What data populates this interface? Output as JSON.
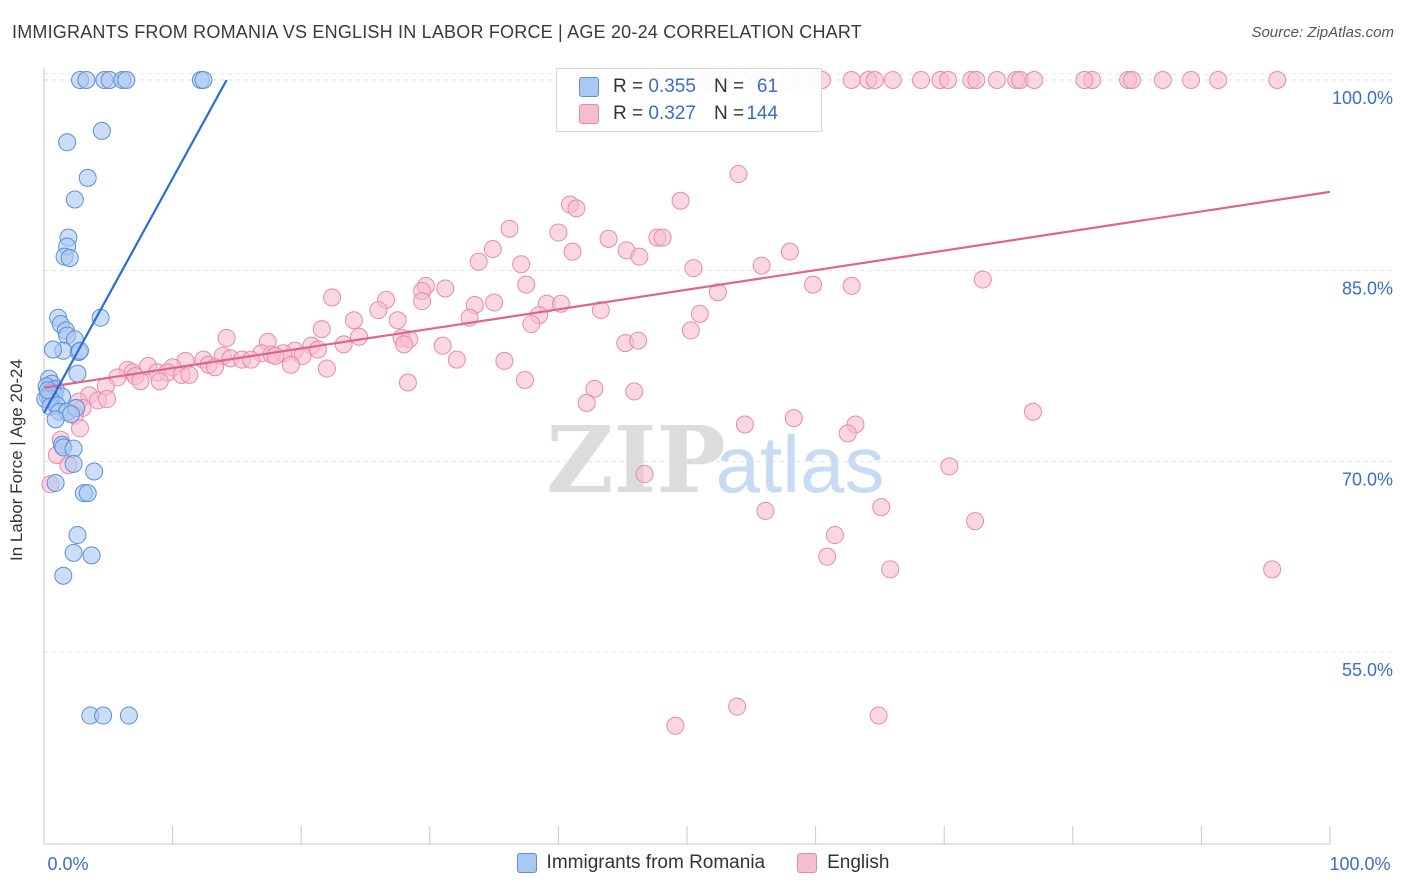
{
  "title": "IMMIGRANTS FROM ROMANIA VS ENGLISH IN LABOR FORCE | AGE 20-24 CORRELATION CHART",
  "source": "Source: ZipAtlas.com",
  "watermark": {
    "zip": "ZIP",
    "atlas": "atlas"
  },
  "colors": {
    "blue_fill": "#aac8f2",
    "blue_stroke": "#5b8fd9",
    "blue_line": "#2a6dd4",
    "pink_fill": "#f6bcd0",
    "pink_stroke": "#e88aab",
    "pink_line": "#e0648f",
    "axis_label": "#3a6fc4"
  },
  "legend": {
    "rows": [
      {
        "r_label": "R =",
        "r_value": "0.355",
        "n_label": "N =",
        "n_value": "61",
        "color": "#aac8f2"
      },
      {
        "r_label": "R =",
        "r_value": "0.327",
        "n_label": "N =",
        "n_value": "144",
        "color": "#f6bcd0"
      }
    ]
  },
  "chart_data": {
    "type": "scatter",
    "title": "IMMIGRANTS FROM ROMANIA VS ENGLISH IN LABOR FORCE | AGE 20-24 CORRELATION CHART",
    "xlabel": "",
    "ylabel": "In Labor Force | Age 20-24",
    "xlim": [
      0,
      100
    ],
    "ylim": [
      40,
      101.5
    ],
    "x_tick_labels": [
      {
        "value": 0,
        "label": "0.0%"
      },
      {
        "value": 100,
        "label": "100.0%"
      }
    ],
    "y_tick_labels": [
      {
        "value": 100,
        "label": "100.0%"
      },
      {
        "value": 85,
        "label": "85.0%"
      },
      {
        "value": 70,
        "label": "70.0%"
      },
      {
        "value": 55,
        "label": "55.0%"
      }
    ],
    "series": [
      {
        "name": "Immigrants from Romania",
        "color": "#aac8f2",
        "trend": {
          "x": [
            0.0,
            14.2
          ],
          "y": [
            73.8,
            100.0
          ]
        },
        "points": [
          [
            2.8,
            100
          ],
          [
            3.3,
            100
          ],
          [
            4.7,
            100
          ],
          [
            5.1,
            100
          ],
          [
            6.1,
            100
          ],
          [
            6.4,
            100
          ],
          [
            12.2,
            100
          ],
          [
            12.4,
            100
          ],
          [
            1.8,
            95.1
          ],
          [
            4.5,
            96.0
          ],
          [
            3.4,
            92.3
          ],
          [
            2.4,
            90.6
          ],
          [
            1.9,
            87.6
          ],
          [
            1.8,
            86.9
          ],
          [
            1.6,
            86.1
          ],
          [
            2.0,
            86.0
          ],
          [
            4.4,
            81.3
          ],
          [
            1.1,
            81.3
          ],
          [
            1.3,
            80.8
          ],
          [
            1.7,
            80.3
          ],
          [
            1.8,
            79.9
          ],
          [
            2.4,
            79.6
          ],
          [
            1.5,
            78.7
          ],
          [
            2.7,
            78.6
          ],
          [
            2.8,
            78.7
          ],
          [
            0.7,
            78.8
          ],
          [
            2.6,
            76.9
          ],
          [
            0.4,
            76.5
          ],
          [
            0.6,
            76.1
          ],
          [
            0.2,
            75.9
          ],
          [
            0.7,
            75.6
          ],
          [
            0.9,
            75.7
          ],
          [
            0.4,
            75.4
          ],
          [
            0.8,
            75.2
          ],
          [
            0.3,
            75.1
          ],
          [
            1.4,
            75.1
          ],
          [
            0.5,
            74.9
          ],
          [
            0.1,
            74.9
          ],
          [
            0.5,
            74.3
          ],
          [
            1.0,
            74.4
          ],
          [
            1.2,
            73.9
          ],
          [
            1.8,
            73.9
          ],
          [
            2.5,
            74.2
          ],
          [
            2.1,
            73.7
          ],
          [
            0.9,
            73.3
          ],
          [
            1.4,
            71.3
          ],
          [
            1.5,
            71.1
          ],
          [
            2.3,
            71.0
          ],
          [
            2.3,
            69.8
          ],
          [
            3.9,
            69.2
          ],
          [
            0.9,
            68.3
          ],
          [
            3.1,
            67.5
          ],
          [
            3.4,
            67.5
          ],
          [
            2.6,
            64.2
          ],
          [
            2.3,
            62.8
          ],
          [
            3.7,
            62.6
          ],
          [
            1.5,
            61.0
          ],
          [
            3.6,
            50.0
          ],
          [
            4.6,
            50.0
          ],
          [
            6.6,
            50.0
          ],
          [
            0.3,
            75.6
          ]
        ]
      },
      {
        "name": "English",
        "color": "#f6bcd0",
        "trend": {
          "x": [
            0.0,
            100.0
          ],
          "y": [
            75.8,
            91.2
          ]
        },
        "points": [
          [
            51.6,
            100
          ],
          [
            52.5,
            100
          ],
          [
            53.1,
            100
          ],
          [
            55.6,
            100
          ],
          [
            56.0,
            100
          ],
          [
            57.8,
            100
          ],
          [
            59.2,
            100
          ],
          [
            60.5,
            100
          ],
          [
            64.1,
            100
          ],
          [
            64.6,
            100
          ],
          [
            66.0,
            100
          ],
          [
            68.2,
            100
          ],
          [
            69.7,
            100
          ],
          [
            72.1,
            100
          ],
          [
            72.5,
            100
          ],
          [
            74.1,
            100
          ],
          [
            75.6,
            100
          ],
          [
            75.9,
            100
          ],
          [
            77.0,
            100
          ],
          [
            81.5,
            100
          ],
          [
            84.3,
            100
          ],
          [
            84.6,
            100
          ],
          [
            87.0,
            100
          ],
          [
            89.2,
            100
          ],
          [
            91.3,
            100
          ],
          [
            95.9,
            100
          ],
          [
            54.3,
            100
          ],
          [
            62.8,
            100
          ],
          [
            70.3,
            100
          ],
          [
            80.9,
            100
          ],
          [
            54.0,
            92.6
          ],
          [
            49.5,
            90.5
          ],
          [
            40.9,
            90.2
          ],
          [
            41.4,
            89.9
          ],
          [
            36.2,
            88.3
          ],
          [
            40.0,
            88.0
          ],
          [
            43.9,
            87.5
          ],
          [
            47.7,
            87.6
          ],
          [
            48.1,
            87.6
          ],
          [
            34.9,
            86.7
          ],
          [
            45.3,
            86.6
          ],
          [
            41.1,
            86.5
          ],
          [
            46.3,
            86.1
          ],
          [
            58.0,
            86.5
          ],
          [
            33.8,
            85.7
          ],
          [
            37.1,
            85.5
          ],
          [
            50.5,
            85.2
          ],
          [
            55.8,
            85.4
          ],
          [
            73.0,
            84.3
          ],
          [
            37.5,
            83.9
          ],
          [
            29.7,
            83.8
          ],
          [
            31.2,
            83.6
          ],
          [
            59.8,
            83.9
          ],
          [
            62.8,
            83.8
          ],
          [
            29.4,
            83.4
          ],
          [
            52.4,
            83.3
          ],
          [
            22.4,
            82.9
          ],
          [
            26.6,
            82.7
          ],
          [
            35.0,
            82.5
          ],
          [
            29.4,
            82.6
          ],
          [
            33.5,
            82.3
          ],
          [
            39.1,
            82.4
          ],
          [
            40.2,
            82.4
          ],
          [
            43.3,
            81.9
          ],
          [
            26.0,
            81.9
          ],
          [
            51.0,
            81.6
          ],
          [
            24.1,
            81.1
          ],
          [
            33.1,
            81.3
          ],
          [
            38.5,
            81.5
          ],
          [
            27.5,
            81.1
          ],
          [
            37.9,
            80.8
          ],
          [
            50.3,
            80.3
          ],
          [
            21.6,
            80.4
          ],
          [
            24.5,
            79.8
          ],
          [
            27.8,
            79.7
          ],
          [
            28.4,
            79.6
          ],
          [
            14.2,
            79.7
          ],
          [
            45.2,
            79.3
          ],
          [
            46.2,
            79.5
          ],
          [
            23.3,
            79.2
          ],
          [
            28.0,
            79.2
          ],
          [
            17.4,
            79.4
          ],
          [
            31.0,
            79.1
          ],
          [
            20.8,
            79.1
          ],
          [
            21.3,
            78.8
          ],
          [
            19.5,
            78.7
          ],
          [
            18.6,
            78.5
          ],
          [
            16.9,
            78.5
          ],
          [
            17.7,
            78.4
          ],
          [
            20.1,
            78.3
          ],
          [
            18.0,
            78.3
          ],
          [
            13.9,
            78.3
          ],
          [
            14.5,
            78.1
          ],
          [
            15.4,
            78.0
          ],
          [
            16.1,
            78.0
          ],
          [
            12.4,
            78.0
          ],
          [
            32.1,
            78.0
          ],
          [
            35.8,
            77.9
          ],
          [
            11.0,
            77.9
          ],
          [
            12.8,
            77.6
          ],
          [
            19.2,
            77.6
          ],
          [
            13.3,
            77.4
          ],
          [
            8.1,
            77.5
          ],
          [
            10.0,
            77.4
          ],
          [
            22.0,
            77.3
          ],
          [
            6.5,
            77.2
          ],
          [
            6.9,
            77.0
          ],
          [
            8.8,
            77.0
          ],
          [
            9.6,
            77.0
          ],
          [
            10.7,
            76.8
          ],
          [
            11.3,
            76.8
          ],
          [
            5.7,
            76.6
          ],
          [
            7.1,
            76.7
          ],
          [
            7.5,
            76.3
          ],
          [
            28.3,
            76.2
          ],
          [
            37.4,
            76.4
          ],
          [
            9.0,
            76.3
          ],
          [
            4.8,
            75.9
          ],
          [
            42.8,
            75.7
          ],
          [
            45.9,
            75.5
          ],
          [
            3.5,
            75.2
          ],
          [
            4.2,
            74.8
          ],
          [
            4.9,
            74.9
          ],
          [
            2.7,
            74.7
          ],
          [
            42.2,
            74.6
          ],
          [
            3.0,
            74.2
          ],
          [
            76.9,
            73.9
          ],
          [
            58.3,
            73.4
          ],
          [
            2.4,
            73.6
          ],
          [
            54.5,
            72.9
          ],
          [
            63.1,
            72.9
          ],
          [
            62.5,
            72.2
          ],
          [
            2.8,
            72.6
          ],
          [
            1.3,
            71.7
          ],
          [
            1.0,
            70.5
          ],
          [
            1.9,
            69.7
          ],
          [
            70.4,
            69.6
          ],
          [
            46.7,
            69.0
          ],
          [
            0.5,
            68.2
          ],
          [
            56.1,
            66.1
          ],
          [
            65.1,
            66.4
          ],
          [
            72.4,
            65.3
          ],
          [
            61.5,
            64.2
          ],
          [
            60.9,
            62.5
          ],
          [
            65.8,
            61.5
          ],
          [
            95.5,
            61.5
          ],
          [
            53.9,
            50.7
          ],
          [
            64.9,
            50.0
          ],
          [
            49.1,
            49.2
          ]
        ]
      }
    ]
  },
  "x_axis": {
    "left_label": "0.0%",
    "right_label": "100.0%"
  },
  "bottom_legend": [
    {
      "label": "Immigrants from Romania",
      "color": "#aac8f2"
    },
    {
      "label": "English",
      "color": "#f6bcd0"
    }
  ]
}
